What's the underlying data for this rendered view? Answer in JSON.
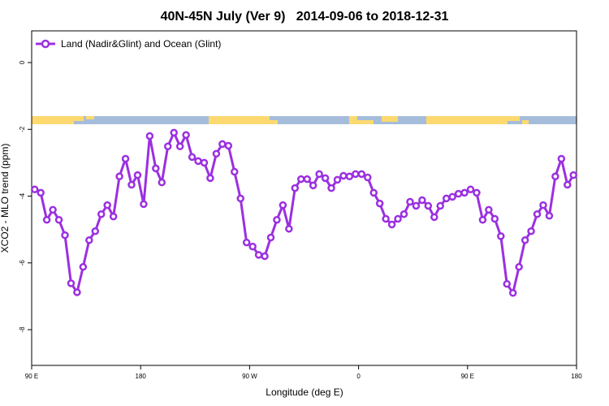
{
  "chart_data": {
    "type": "line",
    "title": "40N-45N July (Ver 9)   2014-09-06 to 2018-12-31",
    "x_label": "Longitude (deg E)",
    "y_label": "XCO2 - MLO trend (ppm)",
    "xlim": [
      90,
      540
    ],
    "xticks": [
      {
        "value": 90,
        "label": "90 E"
      },
      180,
      {
        "value": 270,
        "label": "90 W"
      },
      {
        "value": 360,
        "label": "0"
      },
      {
        "value": 450,
        "label": "90 E"
      },
      {
        "value": 540,
        "label": "180"
      }
    ],
    "ylim": [
      -9.07,
      0.95
    ],
    "yticks": [
      0,
      -2,
      -4,
      -6,
      -8
    ],
    "legend": "top-left",
    "x": [
      92.5,
      97.5,
      102.5,
      107.5,
      112.5,
      117.5,
      122.5,
      127.5,
      132.5,
      137.5,
      142.5,
      147.5,
      152.5,
      157.5,
      162.5,
      167.5,
      172.5,
      177.5,
      182.5,
      187.5,
      192.5,
      197.5,
      202.5,
      207.5,
      212.5,
      217.5,
      222.5,
      227.5,
      232.5,
      237.5,
      242.5,
      247.5,
      252.5,
      257.5,
      262.5,
      267.5,
      272.5,
      277.5,
      282.5,
      287.5,
      292.5,
      297.5,
      302.5,
      307.5,
      312.5,
      317.5,
      322.5,
      327.5,
      332.5,
      337.5,
      342.5,
      347.5,
      352.5,
      357.5,
      362.5,
      367.5,
      372.5,
      377.5,
      382.5,
      387.5,
      392.5,
      397.5,
      402.5,
      407.5,
      412.5,
      417.5,
      422.5,
      427.5,
      432.5,
      437.5,
      442.5,
      447.5,
      452.5,
      457.5,
      462.5,
      467.5,
      472.5,
      477.5,
      482.5,
      487.5,
      492.5,
      497.5,
      502.5,
      507.5,
      512.5,
      517.5,
      522.5,
      527.5,
      532.5,
      537.5
    ],
    "series": [
      {
        "name": "Land (Nadir&Glint) and Ocean (Glint)",
        "color": "#9b30e0",
        "values": [
          -3.8,
          -3.9,
          -4.71,
          -4.41,
          -4.71,
          -5.17,
          -6.61,
          -6.88,
          -6.12,
          -5.32,
          -5.05,
          -4.54,
          -4.27,
          -4.61,
          -3.41,
          -2.88,
          -3.66,
          -3.37,
          -4.24,
          -2.2,
          -3.17,
          -3.59,
          -2.51,
          -2.1,
          -2.51,
          -2.17,
          -2.83,
          -2.95,
          -3.0,
          -3.46,
          -2.73,
          -2.44,
          -2.49,
          -3.27,
          -4.07,
          -5.39,
          -5.51,
          -5.76,
          -5.8,
          -5.24,
          -4.71,
          -4.27,
          -4.98,
          -3.76,
          -3.49,
          -3.49,
          -3.68,
          -3.34,
          -3.46,
          -3.76,
          -3.51,
          -3.39,
          -3.41,
          -3.34,
          -3.34,
          -3.44,
          -3.9,
          -4.22,
          -4.68,
          -4.85,
          -4.68,
          -4.54,
          -4.17,
          -4.29,
          -4.12,
          -4.29,
          -4.63,
          -4.29,
          -4.07,
          -4.02,
          -3.93,
          -3.9,
          -3.8,
          -3.9,
          -4.71,
          -4.41,
          -4.68,
          -5.2,
          -6.63,
          -6.9,
          -6.12,
          -5.32,
          -5.05,
          -4.54,
          -4.27,
          -4.59,
          -3.41,
          -2.88,
          -3.66,
          -3.37
        ]
      }
    ]
  }
}
